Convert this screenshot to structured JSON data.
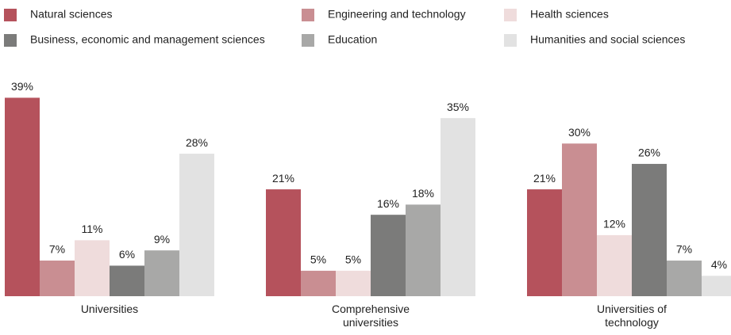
{
  "chart_data": {
    "type": "bar",
    "categories": [
      "Universities",
      "Comprehensive universities",
      "Universities of technology"
    ],
    "ylim": [
      0,
      40
    ],
    "series": [
      {
        "name": "Natural sciences",
        "color": "#b5525c",
        "values": [
          39,
          21,
          21
        ],
        "value_labels": [
          "39%",
          "21%",
          "21%"
        ]
      },
      {
        "name": "Engineering and technology",
        "color": "#c98e92",
        "values": [
          7,
          5,
          30
        ],
        "value_labels": [
          "7%",
          "5%",
          "30%"
        ]
      },
      {
        "name": "Health sciences",
        "color": "#efdcdc",
        "values": [
          11,
          5,
          12
        ],
        "value_labels": [
          "11%",
          "5%",
          "12%"
        ]
      },
      {
        "name": "Business, economic and management sciences",
        "color": "#7b7b7a",
        "values": [
          6,
          16,
          26
        ],
        "value_labels": [
          "6%",
          "16%",
          "26%"
        ]
      },
      {
        "name": "Education",
        "color": "#a8a8a7",
        "values": [
          9,
          18,
          7
        ],
        "value_labels": [
          "9%",
          "18%",
          "7%"
        ]
      },
      {
        "name": "Humanities and social sciences",
        "color": "#e2e2e2",
        "values": [
          28,
          35,
          4
        ],
        "value_labels": [
          "28%",
          "35%",
          "4%"
        ]
      }
    ]
  }
}
